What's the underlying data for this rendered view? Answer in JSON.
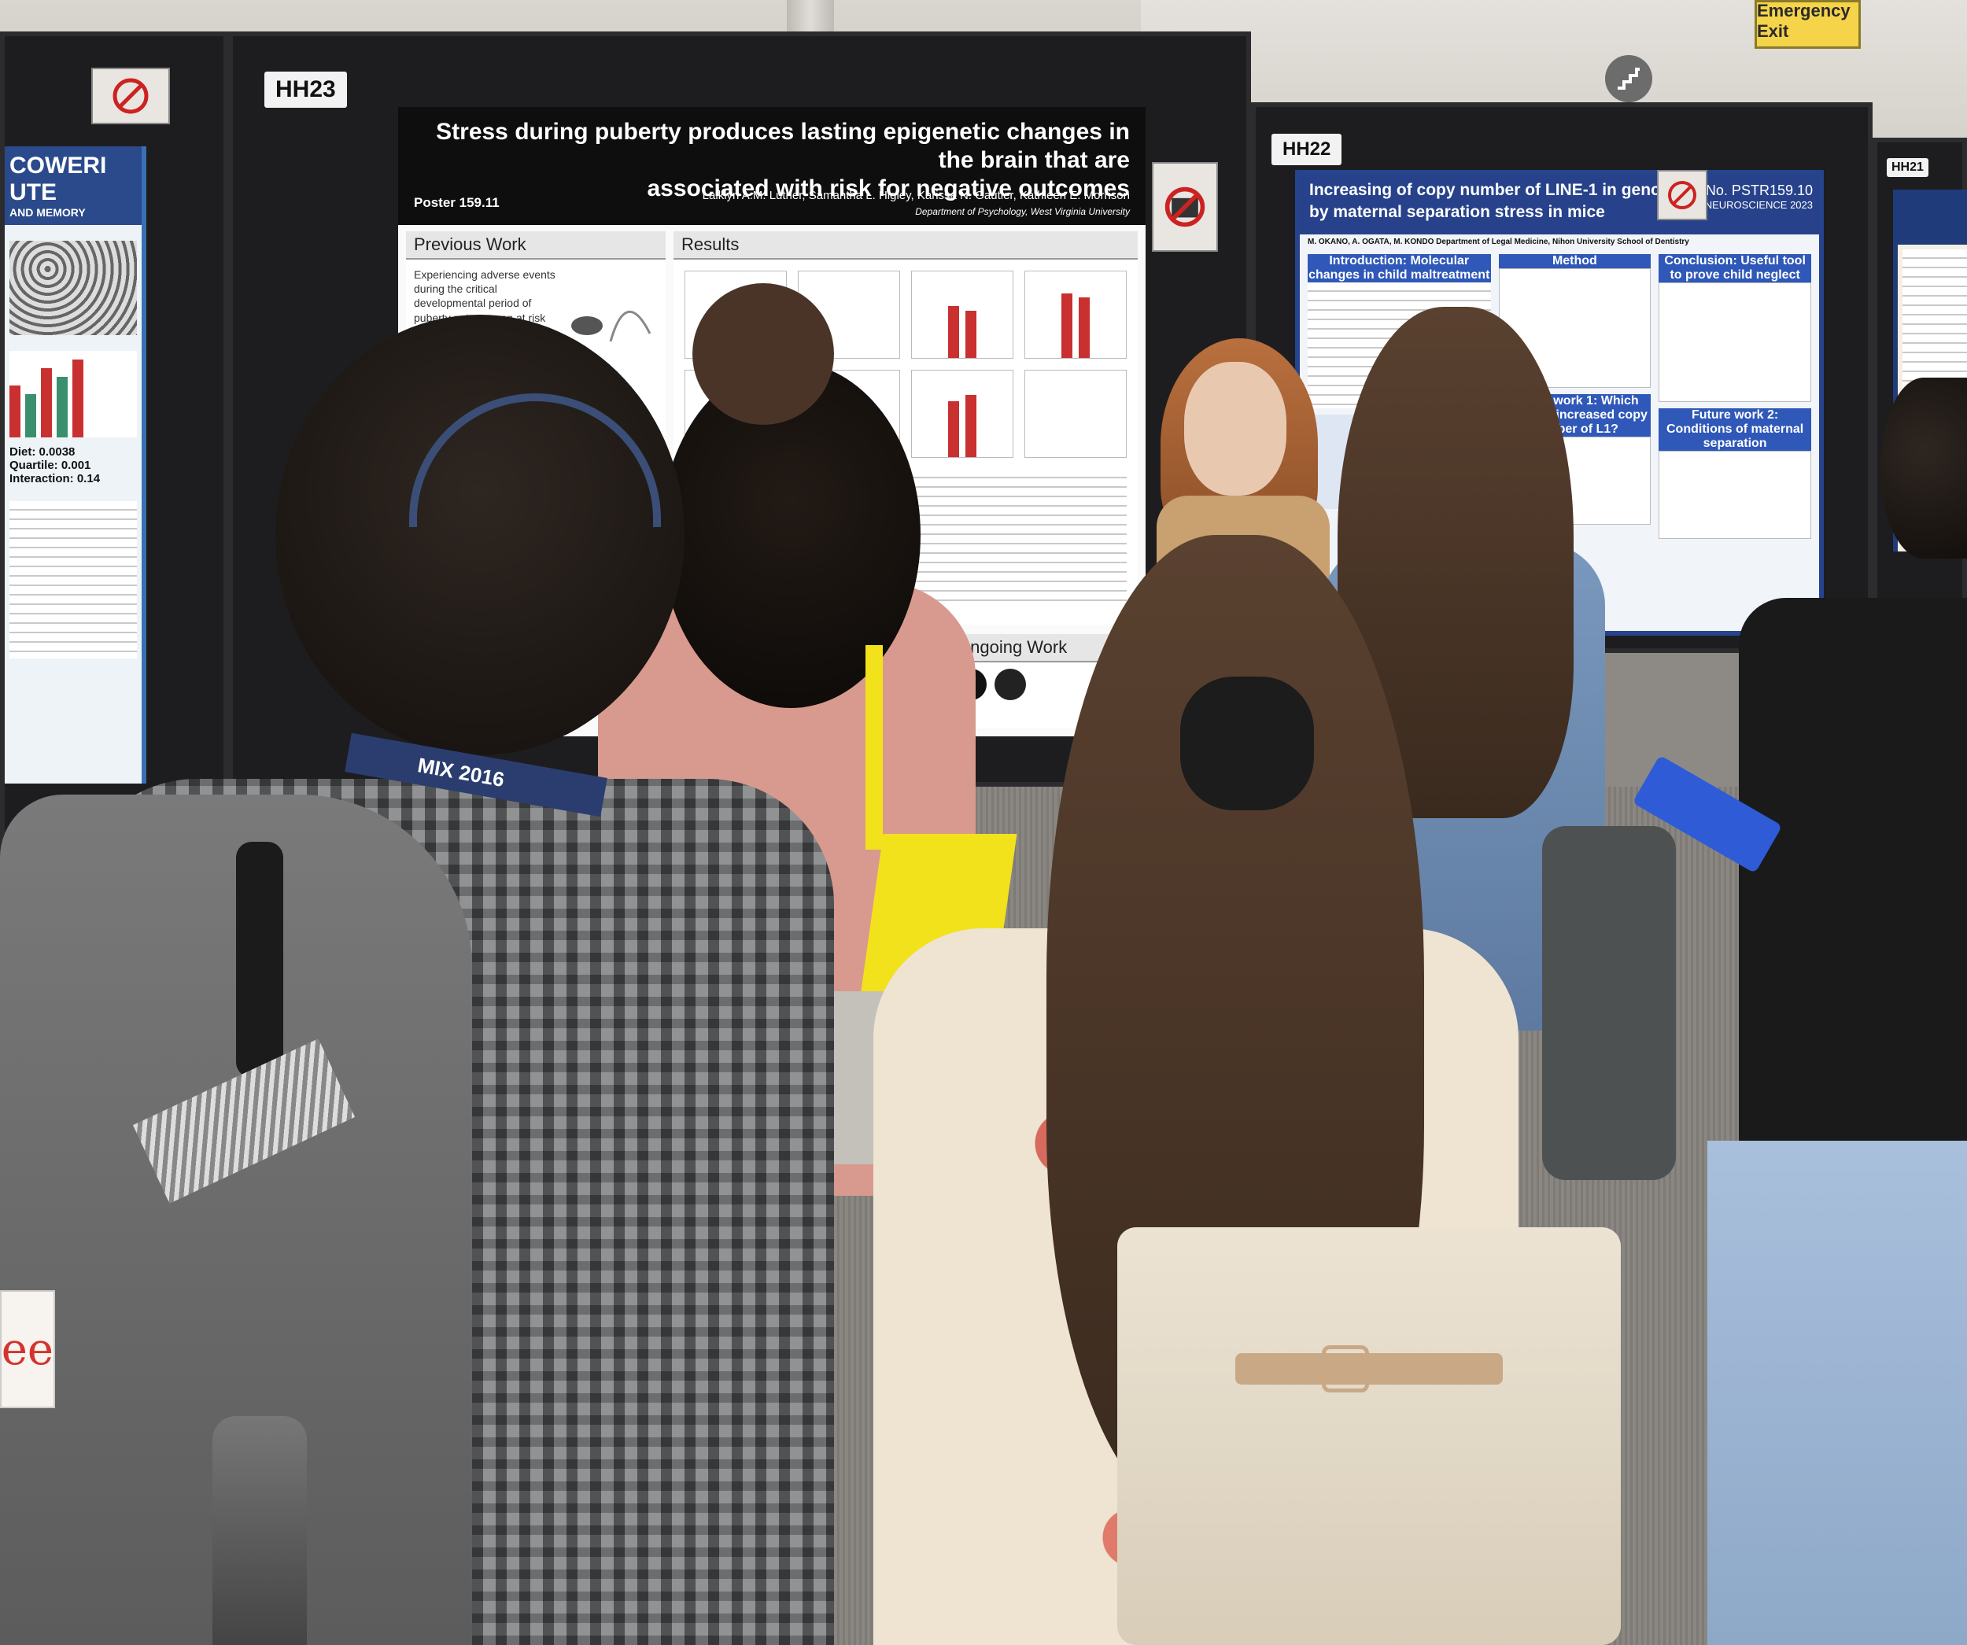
{
  "signage": {
    "emergency_exit": "Emergency Exit"
  },
  "boards": [
    {
      "label": "HH23"
    },
    {
      "label": "HH22"
    },
    {
      "label": "HH21"
    }
  ],
  "poster_main": {
    "title_line1": "Stress during puberty produces lasting epigenetic changes in the brain that are",
    "title_line2": "associated with risk for negative outcomes",
    "poster_number": "Poster 159.11",
    "authors": "Laiklyn A.M. Luther, Samantha L. Higley, Karissa N. Gautier, Kathleen E. Morrison",
    "affiliation": "Department of Psychology, West Virginia University",
    "section_previous": "Previous Work",
    "section_results": "Results",
    "section_ongoing": "Ongoing Work",
    "previous_text": "Experiencing adverse events during the critical developmental period of puberty puts women at risk for mood disorders in adulthood",
    "nophoto_text": "NO PHOTOS"
  },
  "poster_right": {
    "title_line1": "Increasing of copy number of LINE-1 in genomic DNA",
    "title_line2": "by maternal separation stress in mice",
    "number": "No. PSTR159.10",
    "conference": "NEUROSCIENCE 2023",
    "authors": "M. OKANO, A. OGATA, M. KONDO Department of Legal Medicine, Nihon University School of Dentistry",
    "box_intro": "Introduction: Molecular changes in child maltreatment",
    "box_method": "Method",
    "box_conclusion": "Conclusion: Useful tool to prove child neglect",
    "box_future1": "Future work 1: Which cells are increased copy number of L1?",
    "box_future2": "Future work 2: Conditions of maternal separation"
  },
  "poster_left": {
    "title_fragment1": "COWERI",
    "title_fragment2": "UTE",
    "subtitle": "AND MEMORY",
    "stats": [
      "Diet: 0.0038",
      "Quartile: 0.001",
      "Interaction: 0.14"
    ]
  },
  "lanyard": {
    "text": "MIX 2016"
  },
  "bag_label": {
    "text": "ee"
  },
  "colors": {
    "poster_header": "#0e0e0e",
    "bar_red": "#c8312f",
    "right_poster_blue": "#27428b",
    "emergency_sign": "#f5d44a"
  }
}
